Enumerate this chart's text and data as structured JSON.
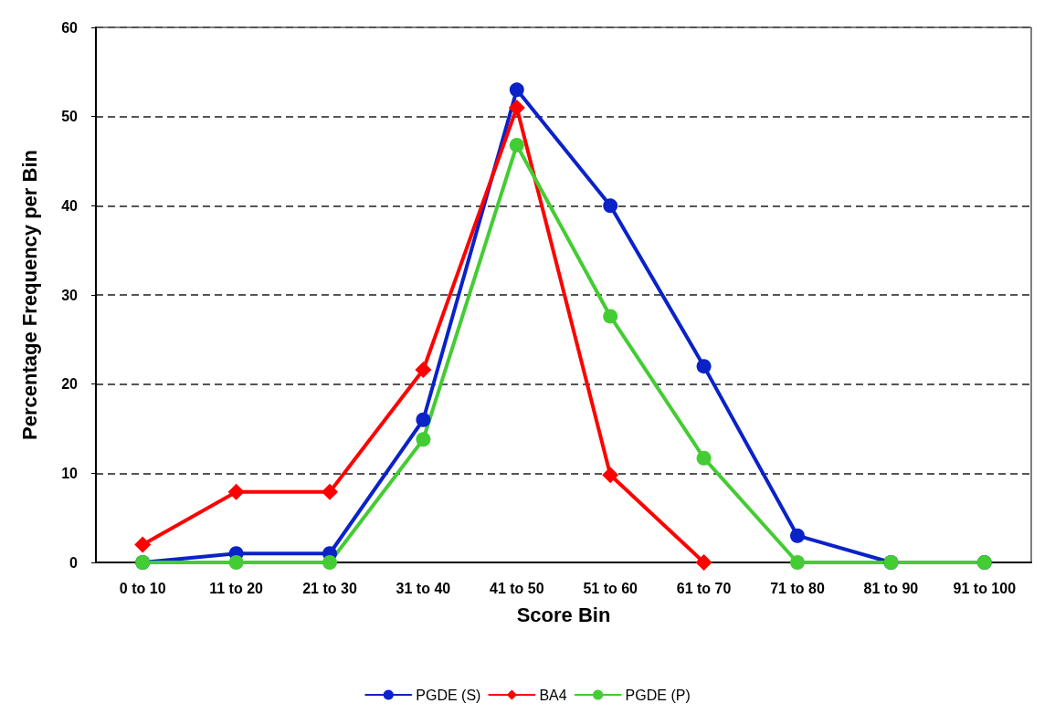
{
  "chart_data": {
    "type": "line",
    "xlabel": "Score Bin",
    "ylabel": "Percentage Frequency per Bin",
    "categories": [
      "0 to 10",
      "11 to 20",
      "21 to 30",
      "31 to 40",
      "41 to 50",
      "51 to 60",
      "61 to 70",
      "71 to 80",
      "81 to 90",
      "91 to 100"
    ],
    "series": [
      {
        "name": "PGDE (S)",
        "color": "#0a22c8",
        "marker": "circle",
        "values": [
          0,
          1,
          1,
          16,
          53,
          40,
          22,
          3,
          0,
          0
        ]
      },
      {
        "name": "BA4",
        "color": "#ff0000",
        "marker": "diamond",
        "values": [
          2,
          7.9,
          7.9,
          21.6,
          51,
          9.8,
          0,
          null,
          null,
          null
        ]
      },
      {
        "name": "PGDE (P)",
        "color": "#44cc33",
        "marker": "circle",
        "values": [
          0,
          0,
          0,
          13.8,
          46.8,
          27.6,
          11.7,
          0,
          0,
          0
        ]
      }
    ],
    "ylim": [
      0,
      60
    ],
    "yticks": [
      0,
      10,
      20,
      30,
      40,
      50,
      60
    ],
    "grid": "y",
    "legend": "bottom",
    "line_style": "solid"
  }
}
